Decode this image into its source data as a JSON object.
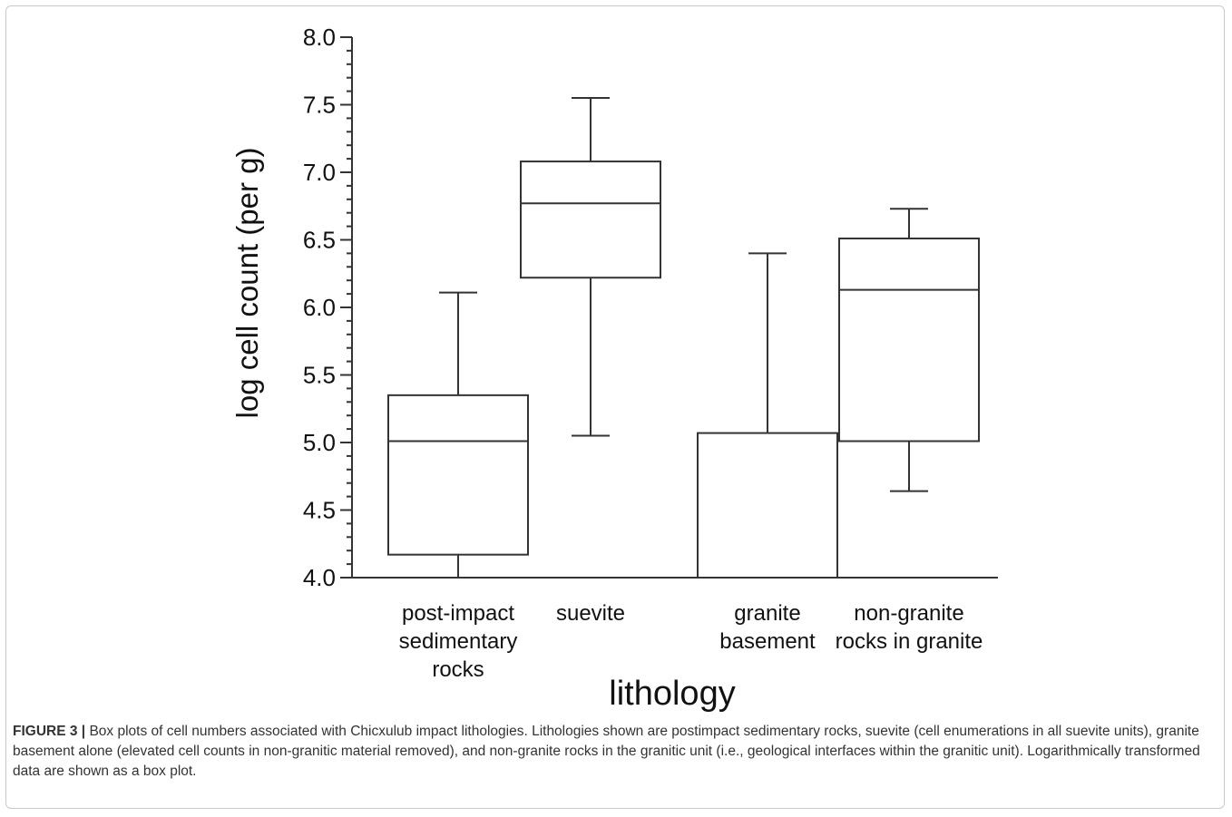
{
  "chart_data": {
    "type": "box",
    "ylabel": "log cell count (per g)",
    "xlabel": "lithology",
    "ylim": [
      4.0,
      8.0
    ],
    "y_ticks": [
      "4.0",
      "4.5",
      "5.0",
      "5.5",
      "6.0",
      "6.5",
      "7.0",
      "7.5",
      "8.0"
    ],
    "categories": [
      [
        "post-impact",
        "sedimentary",
        "rocks"
      ],
      [
        "suevite"
      ],
      [
        "granite",
        "basement"
      ],
      [
        "non-granite",
        "rocks in granite"
      ]
    ],
    "boxes": [
      {
        "whisker_low": 4.0,
        "q1": 4.17,
        "median": 5.01,
        "q3": 5.35,
        "whisker_high": 6.11
      },
      {
        "whisker_low": 5.05,
        "q1": 6.22,
        "median": 6.77,
        "q3": 7.08,
        "whisker_high": 7.55
      },
      {
        "whisker_low": 4.0,
        "q1": 4.0,
        "median": 4.0,
        "q3": 5.07,
        "whisker_high": 6.4
      },
      {
        "whisker_low": 4.64,
        "q1": 5.01,
        "median": 6.13,
        "q3": 6.51,
        "whisker_high": 6.73
      }
    ],
    "colors": {
      "stroke": "#333333",
      "fill": "#ffffff"
    }
  },
  "caption": {
    "label": "FIGURE 3 |",
    "text": " Box plots of cell numbers associated with Chicxulub impact lithologies. Lithologies shown are postimpact sedimentary rocks, suevite (cell enumerations in all suevite units), granite basement alone (elevated cell counts in non-granitic material removed), and non-granite rocks in the granitic unit (i.e., geological interfaces within the granitic unit). Logarithmically transformed data are shown as a box plot."
  }
}
